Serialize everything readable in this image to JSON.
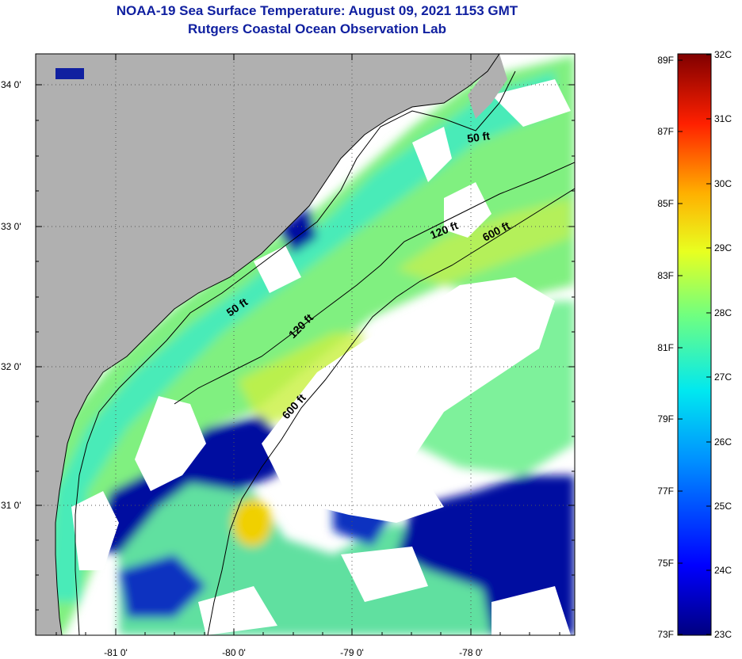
{
  "title_line1": "NOAA-19 Sea Surface Temperature:  August 09, 2021 1153 GMT",
  "title_line2": "Rutgers Coastal Ocean Observation Lab",
  "map": {
    "lat_ticks": [
      "34 0'",
      "33 0'",
      "32 0'",
      "31 0'"
    ],
    "lon_ticks": [
      "-81 0'",
      "-80 0'",
      "-79 0'",
      "-78 0'"
    ],
    "contour_labels": [
      "50 ft",
      "120 ft",
      "600 ft",
      "50 ft",
      "120 ft",
      "600 ft"
    ],
    "colors": {
      "land": "#b0b0b0",
      "cloud": "#ffffff",
      "cold": "#0010a0",
      "warm": "#f0d000"
    }
  },
  "colorbar": {
    "fahrenheit": [
      "89F",
      "87F",
      "85F",
      "83F",
      "81F",
      "79F",
      "77F",
      "75F",
      "73F"
    ],
    "celsius": [
      "32C",
      "31C",
      "30C",
      "29C",
      "28C",
      "27C",
      "26C",
      "25C",
      "24C",
      "23C"
    ]
  }
}
